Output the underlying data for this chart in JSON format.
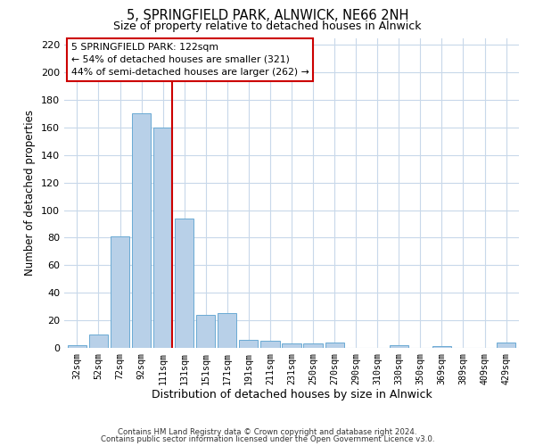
{
  "title": "5, SPRINGFIELD PARK, ALNWICK, NE66 2NH",
  "subtitle": "Size of property relative to detached houses in Alnwick",
  "xlabel": "Distribution of detached houses by size in Alnwick",
  "ylabel": "Number of detached properties",
  "bar_labels": [
    "32sqm",
    "52sqm",
    "72sqm",
    "92sqm",
    "111sqm",
    "131sqm",
    "151sqm",
    "171sqm",
    "191sqm",
    "211sqm",
    "231sqm",
    "250sqm",
    "270sqm",
    "290sqm",
    "310sqm",
    "330sqm",
    "350sqm",
    "369sqm",
    "389sqm",
    "409sqm",
    "429sqm"
  ],
  "bar_values": [
    2,
    10,
    81,
    170,
    160,
    94,
    24,
    25,
    6,
    5,
    3,
    3,
    4,
    0,
    0,
    2,
    0,
    1,
    0,
    0,
    4
  ],
  "bar_color": "#b8d0e8",
  "bar_edge_color": "#6aaad4",
  "ylim": [
    0,
    225
  ],
  "yticks": [
    0,
    20,
    40,
    60,
    80,
    100,
    120,
    140,
    160,
    180,
    200,
    220
  ],
  "vline_color": "#cc0000",
  "annotation_title": "5 SPRINGFIELD PARK: 122sqm",
  "annotation_line1": "← 54% of detached houses are smaller (321)",
  "annotation_line2": "44% of semi-detached houses are larger (262) →",
  "footer1": "Contains HM Land Registry data © Crown copyright and database right 2024.",
  "footer2": "Contains public sector information licensed under the Open Government Licence v3.0.",
  "bg_color": "#ffffff",
  "grid_color": "#c8d8ea"
}
